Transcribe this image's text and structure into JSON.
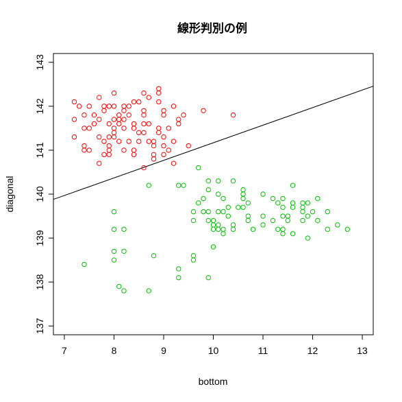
{
  "chart_data": {
    "type": "scatter",
    "title": "線形判別の例",
    "xlabel": "bottom",
    "ylabel": "diagonal",
    "xlim": [
      6.78,
      13.22
    ],
    "ylim": [
      136.8,
      143.2
    ],
    "xticks": [
      "7",
      "8",
      "9",
      "10",
      "11",
      "12",
      "13"
    ],
    "yticks": [
      "137",
      "138",
      "139",
      "140",
      "141",
      "142",
      "143"
    ],
    "grid": false,
    "series": [
      {
        "color": "#ff0000",
        "marker": "open-circle",
        "points": [
          [
            7.2,
            142.1
          ],
          [
            7.3,
            142.0
          ],
          [
            7.2,
            141.7
          ],
          [
            7.5,
            142.0
          ],
          [
            7.4,
            141.8
          ],
          [
            7.5,
            141.5
          ],
          [
            7.4,
            141.5
          ],
          [
            7.2,
            141.3
          ],
          [
            7.4,
            141.1
          ],
          [
            7.4,
            141.0
          ],
          [
            7.5,
            141.0
          ],
          [
            7.6,
            141.6
          ],
          [
            7.6,
            141.8
          ],
          [
            7.7,
            141.7
          ],
          [
            7.7,
            142.2
          ],
          [
            7.8,
            141.9
          ],
          [
            7.8,
            142.0
          ],
          [
            7.9,
            142.0
          ],
          [
            8.0,
            142.0
          ],
          [
            8.0,
            142.3
          ],
          [
            7.9,
            141.6
          ],
          [
            8.0,
            141.7
          ],
          [
            8.0,
            141.5
          ],
          [
            8.0,
            141.4
          ],
          [
            8.1,
            141.6
          ],
          [
            8.1,
            141.8
          ],
          [
            7.7,
            141.3
          ],
          [
            7.8,
            141.2
          ],
          [
            7.9,
            141.3
          ],
          [
            8.0,
            141.3
          ],
          [
            8.1,
            141.2
          ],
          [
            7.9,
            141.1
          ],
          [
            7.9,
            141.0
          ],
          [
            7.8,
            140.9
          ],
          [
            7.7,
            140.7
          ],
          [
            7.9,
            140.9
          ],
          [
            8.2,
            142.0
          ],
          [
            8.3,
            142.0
          ],
          [
            8.2,
            141.9
          ],
          [
            8.3,
            141.8
          ],
          [
            8.2,
            141.7
          ],
          [
            8.2,
            141.5
          ],
          [
            8.1,
            141.7
          ],
          [
            8.4,
            142.1
          ],
          [
            8.5,
            142.1
          ],
          [
            8.4,
            141.6
          ],
          [
            8.4,
            141.5
          ],
          [
            8.5,
            141.4
          ],
          [
            8.5,
            141.2
          ],
          [
            8.4,
            141.0
          ],
          [
            8.3,
            141.2
          ],
          [
            8.2,
            141.0
          ],
          [
            8.4,
            140.9
          ],
          [
            8.6,
            142.3
          ],
          [
            8.7,
            142.2
          ],
          [
            8.6,
            141.9
          ],
          [
            8.7,
            141.6
          ],
          [
            8.6,
            141.6
          ],
          [
            8.6,
            141.4
          ],
          [
            8.7,
            141.2
          ],
          [
            8.8,
            141.2
          ],
          [
            8.9,
            142.4
          ],
          [
            8.9,
            142.3
          ],
          [
            8.9,
            142.1
          ],
          [
            9.0,
            141.9
          ],
          [
            9.0,
            141.8
          ],
          [
            8.9,
            141.5
          ],
          [
            8.9,
            141.4
          ],
          [
            9.0,
            141.3
          ],
          [
            9.0,
            141.1
          ],
          [
            9.0,
            140.9
          ],
          [
            9.1,
            141.0
          ],
          [
            9.1,
            141.5
          ],
          [
            9.2,
            142.0
          ],
          [
            9.3,
            141.7
          ],
          [
            9.4,
            141.8
          ],
          [
            9.3,
            141.6
          ],
          [
            8.8,
            141.1
          ],
          [
            8.8,
            140.9
          ],
          [
            8.8,
            140.8
          ],
          [
            8.6,
            140.6
          ],
          [
            9.2,
            141.2
          ],
          [
            9.2,
            140.7
          ],
          [
            9.5,
            141.1
          ],
          [
            9.8,
            141.9
          ],
          [
            10.4,
            141.8
          ],
          [
            8.6,
            141.8
          ]
        ]
      },
      {
        "color": "#00c000",
        "marker": "open-circle",
        "points": [
          [
            8.0,
            139.6
          ],
          [
            8.0,
            139.2
          ],
          [
            8.2,
            139.2
          ],
          [
            8.0,
            138.7
          ],
          [
            8.0,
            138.5
          ],
          [
            8.2,
            138.7
          ],
          [
            7.4,
            138.4
          ],
          [
            8.1,
            137.9
          ],
          [
            8.2,
            137.8
          ],
          [
            8.7,
            137.8
          ],
          [
            8.8,
            138.6
          ],
          [
            8.7,
            140.2
          ],
          [
            9.3,
            140.2
          ],
          [
            9.4,
            140.2
          ],
          [
            9.3,
            138.3
          ],
          [
            9.3,
            138.1
          ],
          [
            9.6,
            138.6
          ],
          [
            9.6,
            138.5
          ],
          [
            9.9,
            138.1
          ],
          [
            9.7,
            140.6
          ],
          [
            9.6,
            139.6
          ],
          [
            9.6,
            139.4
          ],
          [
            9.7,
            139.8
          ],
          [
            9.8,
            139.9
          ],
          [
            9.8,
            139.6
          ],
          [
            9.9,
            140.3
          ],
          [
            9.9,
            140.1
          ],
          [
            9.9,
            139.6
          ],
          [
            9.9,
            139.4
          ],
          [
            10.0,
            139.3
          ],
          [
            10.0,
            139.4
          ],
          [
            10.0,
            139.2
          ],
          [
            10.1,
            140.3
          ],
          [
            10.1,
            139.6
          ],
          [
            10.1,
            139.3
          ],
          [
            10.1,
            139.2
          ],
          [
            10.1,
            140.0
          ],
          [
            10.2,
            139.9
          ],
          [
            10.2,
            139.6
          ],
          [
            10.2,
            139.1
          ],
          [
            10.2,
            139.2
          ],
          [
            10.3,
            139.7
          ],
          [
            10.3,
            139.5
          ],
          [
            10.4,
            140.3
          ],
          [
            10.4,
            139.3
          ],
          [
            10.4,
            139.2
          ],
          [
            10.5,
            139.7
          ],
          [
            10.6,
            140.1
          ],
          [
            10.6,
            140.0
          ],
          [
            10.6,
            139.9
          ],
          [
            10.6,
            139.7
          ],
          [
            10.7,
            139.8
          ],
          [
            10.7,
            139.5
          ],
          [
            10.7,
            139.4
          ],
          [
            10.8,
            139.2
          ],
          [
            10.0,
            138.8
          ],
          [
            11.0,
            140.0
          ],
          [
            11.0,
            139.5
          ],
          [
            11.0,
            139.3
          ],
          [
            11.2,
            139.9
          ],
          [
            11.2,
            139.4
          ],
          [
            11.3,
            139.2
          ],
          [
            11.3,
            139.8
          ],
          [
            11.4,
            139.9
          ],
          [
            11.4,
            139.7
          ],
          [
            11.4,
            139.5
          ],
          [
            11.4,
            139.2
          ],
          [
            11.4,
            139.1
          ],
          [
            11.5,
            139.4
          ],
          [
            11.5,
            139.5
          ],
          [
            11.6,
            140.2
          ],
          [
            11.6,
            139.8
          ],
          [
            11.6,
            139.7
          ],
          [
            11.6,
            139.1
          ],
          [
            11.8,
            139.8
          ],
          [
            11.8,
            139.7
          ],
          [
            11.8,
            139.6
          ],
          [
            11.8,
            139.4
          ],
          [
            11.9,
            139.8
          ],
          [
            11.9,
            139.5
          ],
          [
            11.9,
            139.0
          ],
          [
            12.0,
            139.6
          ],
          [
            12.1,
            139.9
          ],
          [
            12.1,
            139.4
          ],
          [
            12.3,
            139.6
          ],
          [
            12.3,
            139.2
          ],
          [
            12.5,
            139.3
          ],
          [
            12.7,
            139.2
          ]
        ]
      }
    ],
    "line": {
      "color": "#000000",
      "slope": 0.4,
      "intercept": 137.169
    }
  }
}
